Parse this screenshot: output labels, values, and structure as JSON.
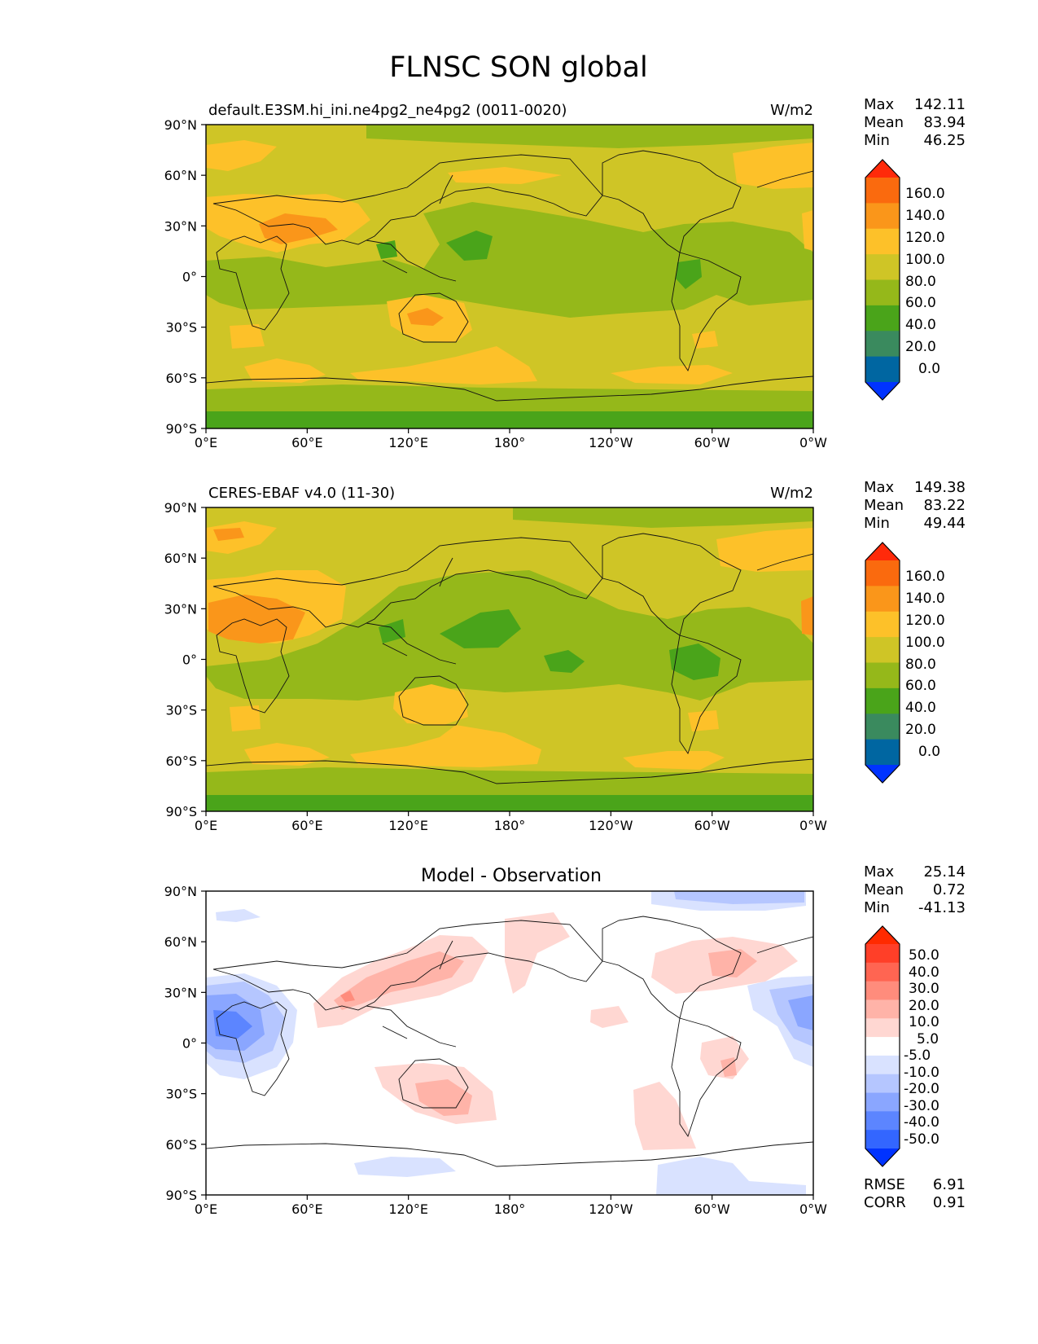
{
  "figure": {
    "title": "FLNSC SON global",
    "x_ticks": [
      "0°E",
      "60°E",
      "120°E",
      "180°",
      "120°W",
      "60°W",
      "0°W"
    ],
    "y_ticks": [
      "90°N",
      "60°N",
      "30°N",
      "0°",
      "30°S",
      "60°S",
      "90°S"
    ],
    "panels": [
      {
        "id": "model",
        "left_title": "default.E3SM.hi_ini.ne4pg2_ne4pg2 (0011-0020)",
        "center_title": "",
        "right_title": "W/m2",
        "stats_labels": [
          "Max",
          "Mean",
          "Min"
        ],
        "stats_values": [
          "142.11",
          "83.94",
          "46.25"
        ],
        "colorbar_labels": [
          "160.0",
          "140.0",
          "120.0",
          "100.0",
          "80.0",
          "60.0",
          "40.0",
          "20.0",
          "0.0"
        ]
      },
      {
        "id": "observation",
        "left_title": "CERES-EBAF v4.0 (11-30)",
        "center_title": "",
        "right_title": "W/m2",
        "stats_labels": [
          "Max",
          "Mean",
          "Min"
        ],
        "stats_values": [
          "149.38",
          "83.22",
          "49.44"
        ],
        "colorbar_labels": [
          "160.0",
          "140.0",
          "120.0",
          "100.0",
          "80.0",
          "60.0",
          "40.0",
          "20.0",
          "0.0"
        ]
      },
      {
        "id": "difference",
        "left_title": "",
        "center_title": "Model - Observation",
        "right_title": "",
        "stats_labels": [
          "Max",
          "Mean",
          "Min"
        ],
        "stats_values": [
          "25.14",
          "0.72",
          "-41.13"
        ],
        "colorbar_labels": [
          "50.0",
          "40.0",
          "30.0",
          "20.0",
          "10.0",
          "5.0",
          "-5.0",
          "-10.0",
          "-20.0",
          "-30.0",
          "-40.0",
          "-50.0"
        ],
        "extra_labels": [
          "RMSE",
          "CORR"
        ],
        "extra_values": [
          "6.91",
          "0.91"
        ]
      }
    ]
  },
  "colors": {
    "abs_scale": [
      "#0033ff",
      "#0066a1",
      "#3a8a5e",
      "#4aa41a",
      "#95b81a",
      "#cfc526",
      "#fdc129",
      "#fa961a",
      "#fa6a0e",
      "#ff2a0a"
    ],
    "diff_scale": [
      "#0033ff",
      "#3366ff",
      "#5c85ff",
      "#8aa6ff",
      "#b5c6ff",
      "#d9e2ff",
      "#ffffff",
      "#ffd7d2",
      "#ffb3a8",
      "#ff8c7c",
      "#ff6552",
      "#ff3f28",
      "#ff2a00"
    ]
  }
}
